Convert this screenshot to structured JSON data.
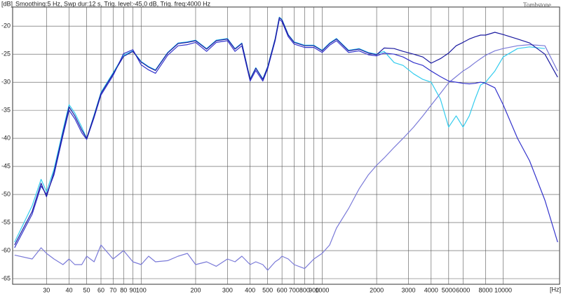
{
  "chart_data": {
    "type": "line",
    "header_text": "Smoothing:5 Hz, Swp dur:12 s, Trig. level:-45,0 dB, Trig. freq:4000 Hz",
    "watermark": "Tombstone",
    "y_label": "[dB]",
    "x_label": "[Hz]",
    "xscale": "log",
    "grid": true,
    "xlim": [
      19.5,
      20500
    ],
    "ylim": [
      -66,
      -16.6
    ],
    "xticks": [
      30,
      40,
      50,
      60,
      70,
      80,
      90,
      100,
      200,
      300,
      400,
      500,
      600,
      700,
      800,
      900,
      1000,
      2000,
      3000,
      4000,
      5000,
      6000,
      8000,
      10000
    ],
    "yticks": [
      -20,
      -25,
      -30,
      -35,
      -40,
      -45,
      -50,
      -55,
      -60,
      -65
    ],
    "x": [
      20,
      25,
      28,
      30,
      33,
      37,
      40,
      43,
      47,
      50,
      55,
      60,
      70,
      80,
      90,
      100,
      110,
      120,
      140,
      160,
      180,
      200,
      230,
      260,
      300,
      330,
      360,
      400,
      430,
      470,
      500,
      550,
      580,
      600,
      650,
      700,
      800,
      900,
      1000,
      1100,
      1200,
      1400,
      1600,
      1800,
      2000,
      2200,
      2500,
      2800,
      3200,
      3600,
      4000,
      4500,
      5000,
      5500,
      6000,
      6500,
      7000,
      7500,
      8000,
      9000,
      10000,
      12000,
      14000,
      17000,
      20000
    ],
    "series": [
      {
        "color": "#7a7ad8",
        "values": [
          -60.8,
          -61.5,
          -59.5,
          -60.5,
          -61.5,
          -62.5,
          -61.5,
          -62.5,
          -62.5,
          -61,
          -62,
          -59,
          -61.5,
          -60,
          -62,
          -62.5,
          -61,
          -62,
          -61.8,
          -61,
          -60.5,
          -62.5,
          -62,
          -62.8,
          -61.5,
          -62,
          -61,
          -62.5,
          -62,
          -62.5,
          -63.5,
          -62,
          -61.5,
          -61,
          -61.5,
          -62.5,
          -63.2,
          -61.5,
          -60.5,
          -59,
          -56,
          -52.5,
          -49,
          -46.5,
          -44.8,
          -43.5,
          -41.6,
          -40,
          -38,
          -36,
          -34.1,
          -32,
          -30.1,
          -29,
          -28,
          -27.3,
          -26.5,
          -25.8,
          -25.2,
          -24.4,
          -24,
          -23.5,
          -23.3,
          -23.5,
          -28
        ]
      },
      {
        "color": "#33ccee",
        "values": [
          -58.5,
          -52,
          -47.3,
          -49.5,
          -45.5,
          -38.5,
          -34,
          -35.5,
          -38,
          -40,
          -35.8,
          -31.8,
          -28.3,
          -25.2,
          -24.4,
          -26.3,
          -27.2,
          -27.8,
          -24.7,
          -23,
          -22.8,
          -22.5,
          -24,
          -22.5,
          -22.2,
          -24,
          -23,
          -29.4,
          -27.4,
          -29.4,
          -27.2,
          -22.2,
          -18.4,
          -18.8,
          -21.5,
          -22.8,
          -23.4,
          -23.4,
          -24.3,
          -23,
          -22.2,
          -24.3,
          -24,
          -24.7,
          -25,
          -24.5,
          -26.5,
          -27,
          -28.5,
          -29.5,
          -30,
          -33,
          -38,
          -36,
          -38,
          -36,
          -33,
          -30.5,
          -30,
          -28,
          -25.5,
          -24,
          -23.7,
          -24,
          null
        ]
      },
      {
        "color": "#3333cc",
        "values": [
          -59.5,
          -53.5,
          -48.5,
          -50,
          -46.5,
          -39.5,
          -35,
          -36.5,
          -39,
          -40.2,
          -36.3,
          -32.3,
          -28.8,
          -24.9,
          -24.2,
          -26.9,
          -27.8,
          -28.4,
          -25.2,
          -23.5,
          -23.3,
          -22.9,
          -24.5,
          -22.9,
          -22.6,
          -24.5,
          -23.5,
          -29.8,
          -27.9,
          -29.8,
          -27.6,
          -22.6,
          -18.8,
          -19.2,
          -21.9,
          -23.2,
          -23.8,
          -23.8,
          -24.7,
          -23.4,
          -22.6,
          -24.7,
          -24.4,
          -25.1,
          -25.3,
          -24.8,
          -25,
          -25.5,
          -26.5,
          -27,
          -28,
          -29,
          -29.8,
          -30,
          -30.2,
          -30.3,
          -30.2,
          -30,
          -30.2,
          -31,
          -34,
          -40,
          -44,
          -51,
          -58.5
        ]
      },
      {
        "color": "#1a1aa0",
        "values": [
          -59,
          -53,
          -48,
          -50.4,
          -46,
          -39,
          -34.4,
          -36,
          -38.5,
          -40,
          -36,
          -32,
          -28.5,
          -25.4,
          -24.5,
          -26.4,
          -27.3,
          -27.9,
          -24.8,
          -23.1,
          -22.9,
          -22.6,
          -24.1,
          -22.6,
          -22.3,
          -24.1,
          -23.1,
          -29.5,
          -27.5,
          -29.5,
          -27.3,
          -22.3,
          -18.5,
          -18.9,
          -21.6,
          -22.9,
          -23.5,
          -23.5,
          -24.4,
          -23.1,
          -22.3,
          -24.4,
          -24.1,
          -24.8,
          -25.1,
          -23.9,
          -24,
          -24.5,
          -25,
          -25.5,
          -26.6,
          -25.8,
          -24.8,
          -23.5,
          -22.9,
          -22.3,
          -21.9,
          -21.6,
          -21.6,
          -21.1,
          -21.5,
          -22.3,
          -23,
          -25,
          -29.1
        ]
      }
    ]
  }
}
